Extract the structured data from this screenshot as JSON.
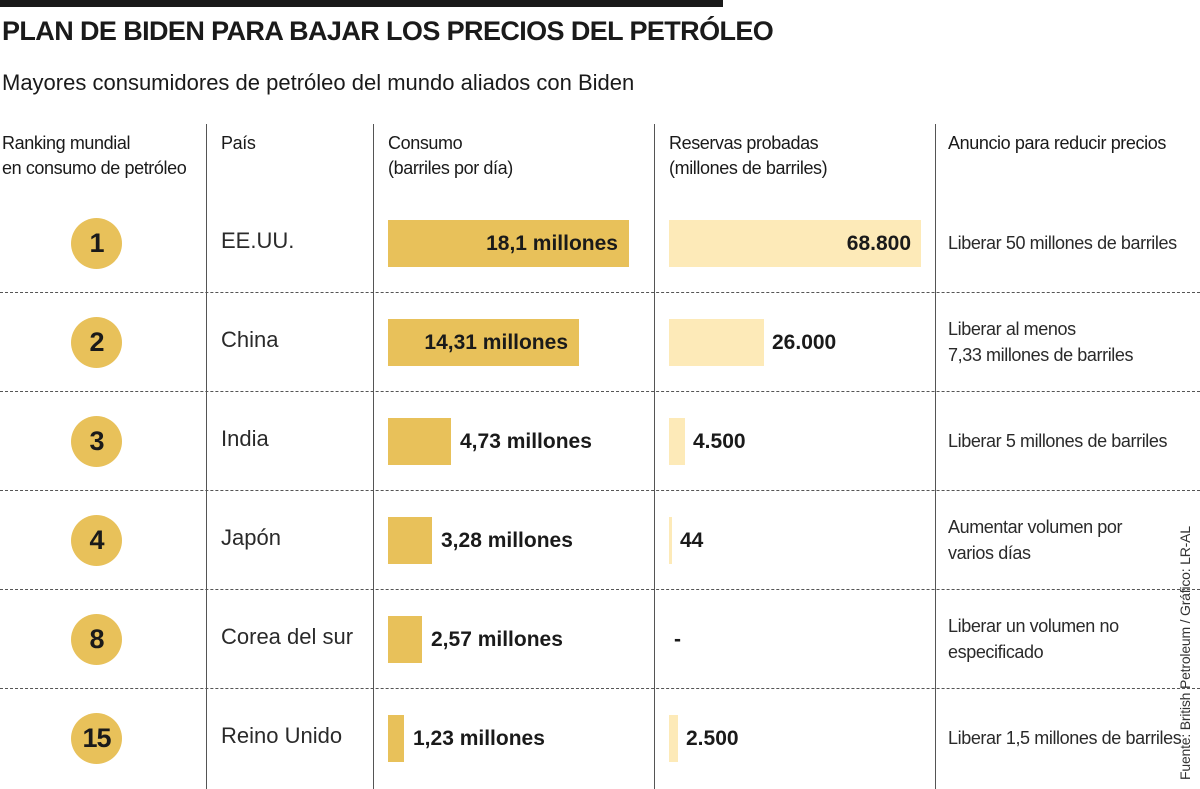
{
  "title": "PLAN DE BIDEN PARA BAJAR LOS PRECIOS DEL PETRÓLEO",
  "subtitle": "Mayores consumidores de petróleo del mundo aliados con Biden",
  "headers": {
    "ranking": [
      "Ranking mundial",
      "en consumo de petróleo"
    ],
    "country": [
      "País"
    ],
    "consumption": [
      "Consumo",
      "(barriles por día)"
    ],
    "reserves": [
      "Reservas probadas",
      "(millones de barriles)"
    ],
    "announcement": [
      "Anuncio para reducir precios"
    ]
  },
  "source": "Fuente: British Petroleum / Gráfico: LR-AL",
  "colors": {
    "consumption_bar": "#e8c15a",
    "reserves_bar": "#fdeab8",
    "rank_circle": "#e8c15a"
  },
  "chart_data": {
    "type": "bar",
    "title": "PLAN DE BIDEN PARA BAJAR LOS PRECIOS DEL PETRÓLEO",
    "categories": [
      "EE.UU.",
      "China",
      "India",
      "Japón",
      "Corea del sur",
      "Reino Unido"
    ],
    "series": [
      {
        "name": "Consumo (millones de barriles por día)",
        "values": [
          18.1,
          14.31,
          4.73,
          3.28,
          2.57,
          1.23
        ],
        "labels": [
          "18,1 millones",
          "14,31 millones",
          "4,73 millones",
          "3,28 millones",
          "2,57 millones",
          "1,23 millones"
        ]
      },
      {
        "name": "Reservas probadas (millones de barriles)",
        "values": [
          68800,
          26000,
          4500,
          44,
          null,
          2500
        ],
        "labels": [
          "68.800",
          "26.000",
          "4.500",
          "44",
          "-",
          "2.500"
        ]
      }
    ],
    "rows": [
      {
        "rank": "1",
        "country": "EE.UU.",
        "announcement": [
          "Liberar 50 millones de barriles"
        ]
      },
      {
        "rank": "2",
        "country": "China",
        "announcement": [
          "Liberar al menos",
          "7,33 millones de barriles"
        ]
      },
      {
        "rank": "3",
        "country": "India",
        "announcement": [
          "Liberar 5 millones de barriles"
        ]
      },
      {
        "rank": "4",
        "country": "Japón",
        "announcement": [
          "Aumentar volumen por",
          "varios días"
        ]
      },
      {
        "rank": "8",
        "country": "Corea del sur",
        "announcement": [
          "Liberar un volumen no",
          "especificado"
        ]
      },
      {
        "rank": "15",
        "country": "Reino Unido",
        "announcement": [
          "Liberar 1,5 millones de barriles"
        ]
      }
    ]
  }
}
